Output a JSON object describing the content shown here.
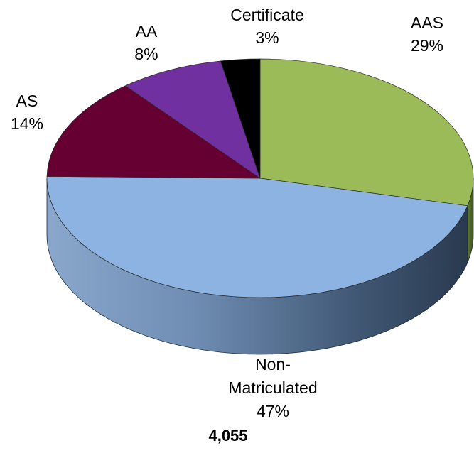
{
  "chart_data": {
    "type": "pie",
    "slices": [
      {
        "label": "AAS",
        "value": 29,
        "percent_label": "29%",
        "color": "#9BBB59"
      },
      {
        "label": "Non-Matriculated",
        "label_lines": [
          "Non-",
          "Matriculated"
        ],
        "value": 47,
        "percent_label": "47%",
        "color": "#8DB3E2"
      },
      {
        "label": "AS",
        "value": 14,
        "percent_label": "14%",
        "color": "#660033"
      },
      {
        "label": "AA",
        "value": 8,
        "percent_label": "8%",
        "color": "#7030A0"
      },
      {
        "label": "Certificate",
        "value": 3,
        "percent_label": "3%",
        "color": "#000000"
      }
    ],
    "total": "4,055",
    "style": "3d"
  }
}
